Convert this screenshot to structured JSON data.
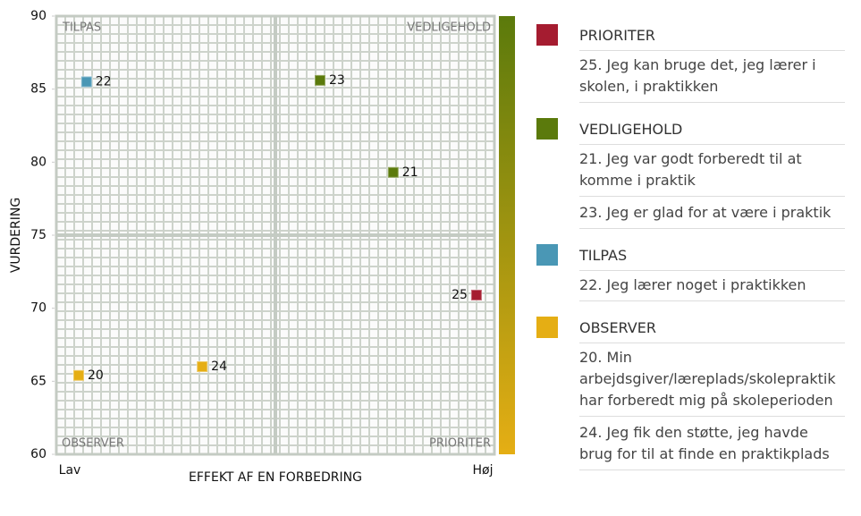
{
  "chart_data": {
    "type": "scatter",
    "y_label": "VURDERING",
    "x_label": "EFFEKT AF EN FORBEDRING",
    "x_low_label": "Lav",
    "x_high_label": "Høj",
    "xlim": [
      0,
      100
    ],
    "ylim": [
      60,
      90
    ],
    "yticks": [
      60,
      65,
      70,
      75,
      80,
      85,
      90
    ],
    "quadrant_labels": [
      "TILPAS",
      "VEDLIGEHOLD",
      "OBSERVER",
      "PRIORITER"
    ],
    "series": [
      {
        "name": "PRIORITER",
        "color": "#a51c30",
        "x": [
          95.9
        ],
        "values": [
          70.9
        ],
        "labels": [
          "25"
        ],
        "items": [
          "25. Jeg kan bruge det, jeg lærer i skolen, i praktikken"
        ]
      },
      {
        "name": "VEDLIGEHOLD",
        "color": "#5b7a0c",
        "x": [
          76.9,
          60.2
        ],
        "values": [
          79.3,
          85.6
        ],
        "labels": [
          "21",
          "23"
        ],
        "items": [
          "21. Jeg var godt forberedt til at komme i praktik",
          "23. Jeg er glad for at være i praktik"
        ]
      },
      {
        "name": "TILPAS",
        "color": "#4a97b5",
        "x": [
          6.9
        ],
        "values": [
          85.5
        ],
        "labels": [
          "22"
        ],
        "items": [
          "22. Jeg lærer noget i praktikken"
        ]
      },
      {
        "name": "OBSERVER",
        "color": "#e5ae14",
        "x": [
          5.1,
          33.3
        ],
        "values": [
          65.4,
          66.0
        ],
        "labels": [
          "20",
          "24"
        ],
        "items": [
          "20. Min arbejdsgiver/læreplads/skolepraktik har forberedt mig på skoleperioden",
          "24. Jeg fik den støtte, jeg havde brug for til at finde en praktikplads"
        ]
      }
    ]
  }
}
